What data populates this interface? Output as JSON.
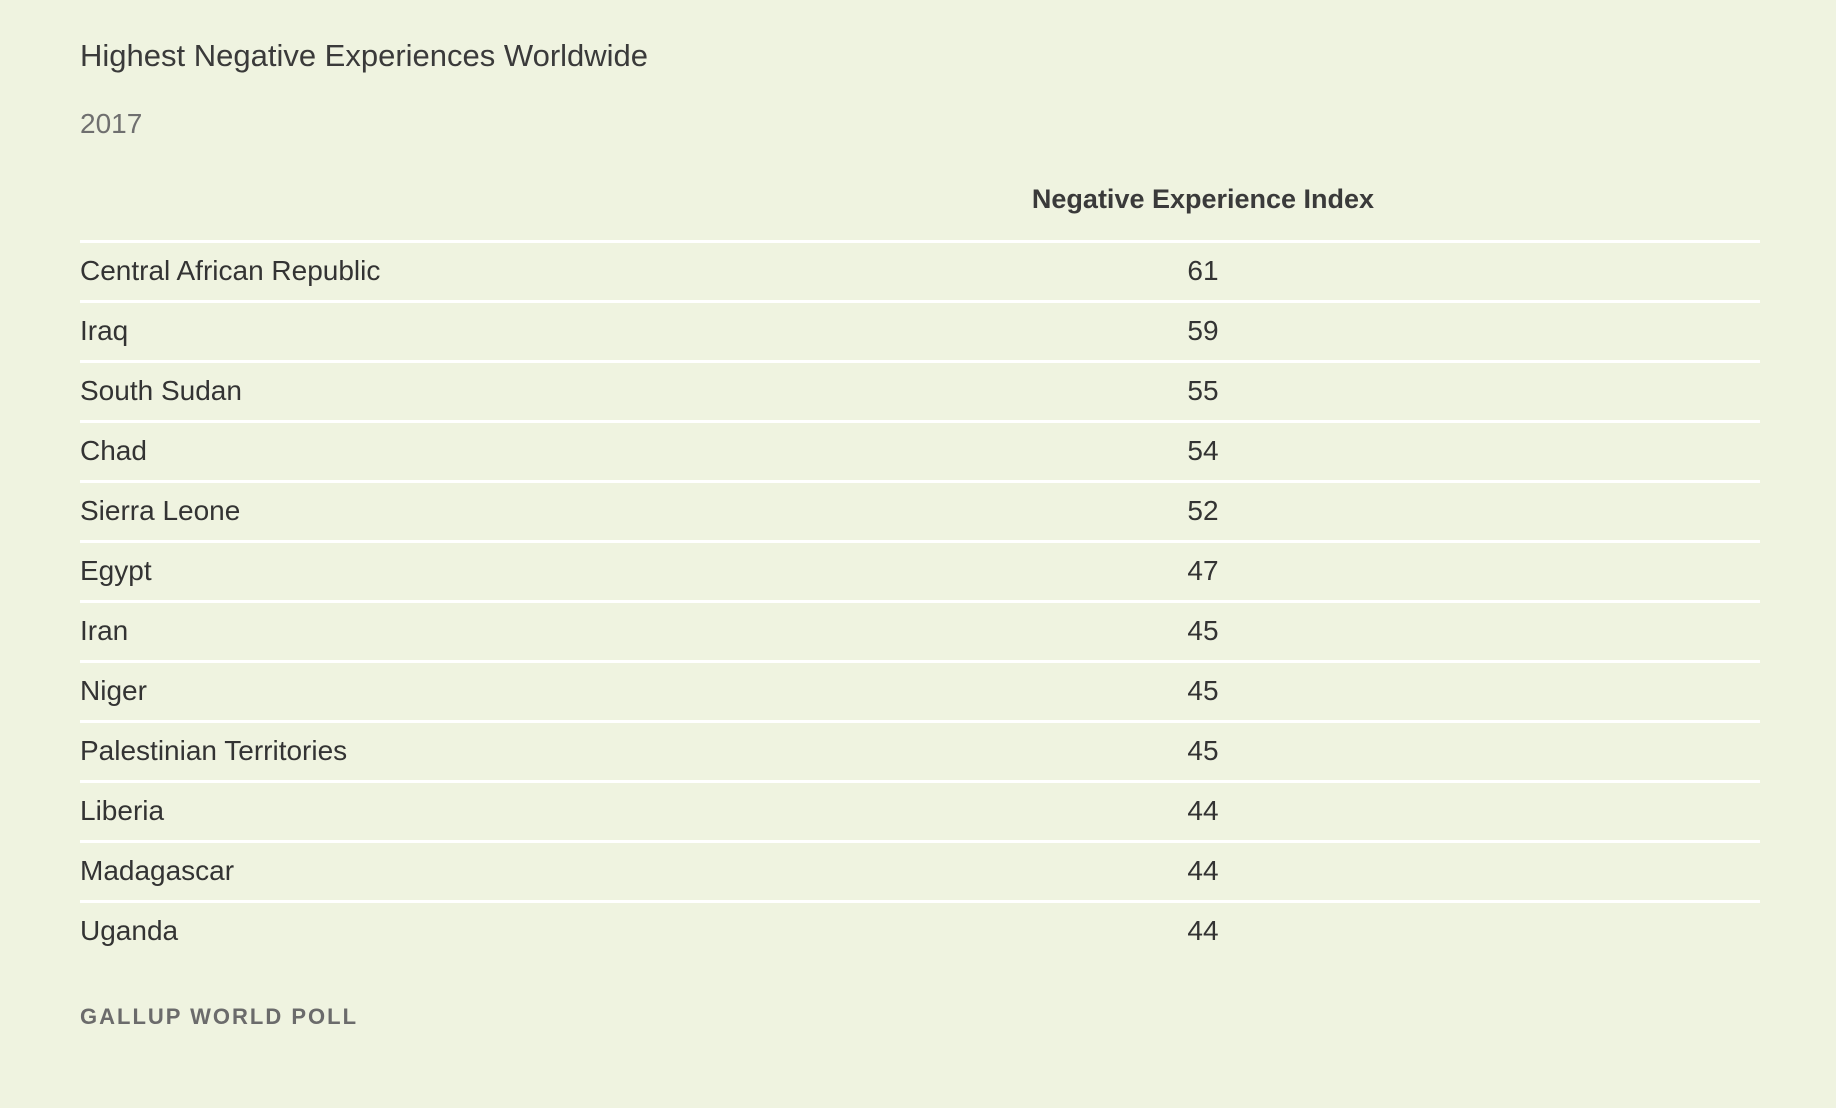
{
  "chart_data": {
    "type": "table",
    "title": "Highest Negative Experiences Worldwide",
    "subtitle": "2017",
    "columns": [
      "",
      "Negative Experience Index"
    ],
    "rows": [
      {
        "country": "Central African Republic",
        "value": 61
      },
      {
        "country": "Iraq",
        "value": 59
      },
      {
        "country": "South Sudan",
        "value": 55
      },
      {
        "country": "Chad",
        "value": 54
      },
      {
        "country": "Sierra Leone",
        "value": 52
      },
      {
        "country": "Egypt",
        "value": 47
      },
      {
        "country": "Iran",
        "value": 45
      },
      {
        "country": "Niger",
        "value": 45
      },
      {
        "country": "Palestinian Territories",
        "value": 45
      },
      {
        "country": "Liberia",
        "value": 44
      },
      {
        "country": "Madagascar",
        "value": 44
      },
      {
        "country": "Uganda",
        "value": 44
      }
    ],
    "source": "GALLUP WORLD POLL"
  },
  "colors": {
    "background": "#eff3e0",
    "row_divider": "#ffffff",
    "text": "#333333"
  }
}
